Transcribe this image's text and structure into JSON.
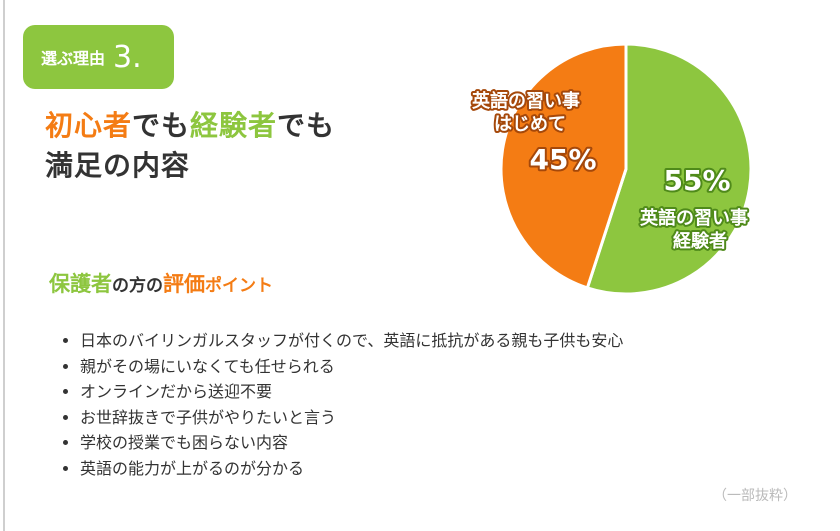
{
  "badge": {
    "label": "選ぶ理由",
    "number": "3."
  },
  "headline": {
    "part1": "初心者",
    "part2": "でも",
    "part3": "経験者",
    "part4": "でも",
    "line2": "満足の内容"
  },
  "subheading": {
    "part1": "保護者",
    "part2": "の方の",
    "part3": "評価",
    "part4": "ポイント"
  },
  "points": [
    "日本のバイリンガルスタッフが付くので、英語に抵抗がある親も子供も安心",
    "親がその場にいなくても任せられる",
    "オンラインだから送迎不要",
    "お世辞抜きで子供がやりたいと言う",
    "学校の授業でも困らない内容",
    "英語の能力が上がるのが分かる"
  ],
  "note": "（一部抜粋）",
  "colors": {
    "green": "#8dc63f",
    "orange": "#f47c14",
    "text": "#333333"
  },
  "chart_data": {
    "type": "pie",
    "start": "top",
    "direction": "clockwise",
    "slices": [
      {
        "label_line1": "英語の習い事",
        "label_line2": "経験者",
        "value": 55,
        "value_label": "55%",
        "color": "#8dc63f"
      },
      {
        "label_line1": "英語の習い事",
        "label_line2": "はじめて",
        "value": 45,
        "value_label": "45%",
        "color": "#f47c14"
      }
    ]
  }
}
